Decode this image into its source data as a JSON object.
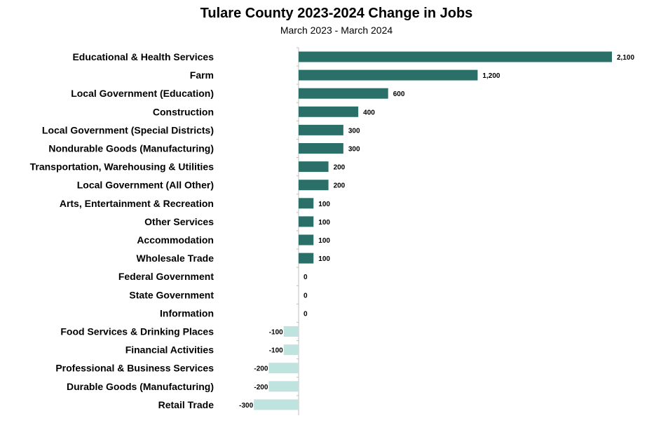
{
  "chart_data": {
    "type": "bar",
    "orientation": "horizontal",
    "title": "Tulare County 2023-2024 Change in Jobs",
    "subtitle": "March 2023 - March 2024",
    "categories": [
      "Educational & Health Services",
      "Farm",
      "Local Government (Education)",
      "Construction",
      "Local Government (Special Districts)",
      "Nondurable Goods (Manufacturing)",
      "Transportation, Warehousing & Utilities",
      "Local Government (All Other)",
      "Arts, Entertainment & Recreation",
      "Other Services",
      "Accommodation",
      "Wholesale Trade",
      "Federal Government",
      "State Government",
      "Information",
      "Food Services & Drinking Places",
      "Financial Activities",
      "Professional & Business Services",
      "Durable Goods (Manufacturing)",
      "Retail Trade"
    ],
    "values": [
      2100,
      1200,
      600,
      400,
      300,
      300,
      200,
      200,
      100,
      100,
      100,
      100,
      0,
      0,
      0,
      -100,
      -100,
      -200,
      -200,
      -300
    ],
    "value_labels": [
      "2,100",
      "1,200",
      "600",
      "400",
      "300",
      "300",
      "200",
      "200",
      "100",
      "100",
      "100",
      "100",
      "0",
      "0",
      "0",
      "-100",
      "-100",
      "-200",
      "-200",
      "-300"
    ],
    "colors": {
      "positive": "#2a7068",
      "negative": "#bfe3de",
      "axis": "#bfbfbf"
    },
    "grid": false,
    "legend": "none"
  }
}
